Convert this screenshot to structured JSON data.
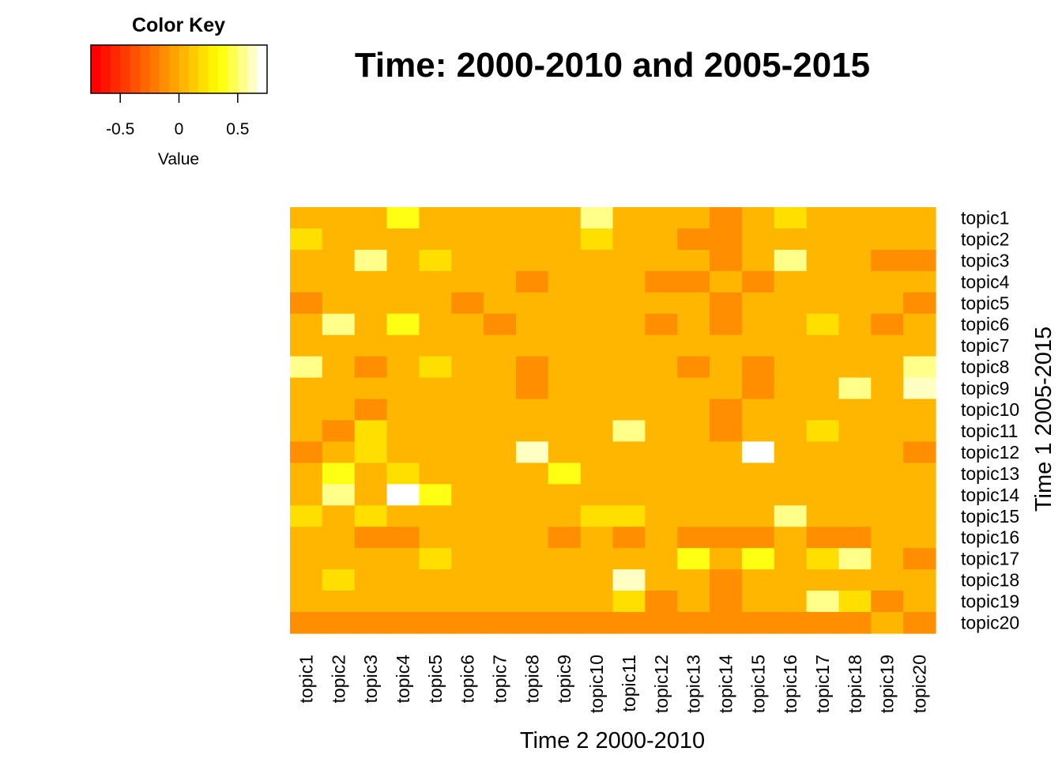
{
  "chart_data": {
    "type": "heatmap",
    "title": "Time: 2000-2010 and 2005-2015",
    "xlabel": "Time 2 2000-2010",
    "ylabel": "Time 1 2005-2015",
    "x_categories": [
      "topic1",
      "topic2",
      "topic3",
      "topic4",
      "topic5",
      "topic6",
      "topic7",
      "topic8",
      "topic9",
      "topic10",
      "topic11",
      "topic12",
      "topic13",
      "topic14",
      "topic15",
      "topic16",
      "topic17",
      "topic18",
      "topic19",
      "topic20"
    ],
    "y_categories": [
      "topic1",
      "topic2",
      "topic3",
      "topic4",
      "topic5",
      "topic6",
      "topic7",
      "topic8",
      "topic9",
      "topic10",
      "topic11",
      "topic12",
      "topic13",
      "topic14",
      "topic15",
      "topic16",
      "topic17",
      "topic18",
      "topic19",
      "topic20"
    ],
    "values": [
      [
        0,
        0,
        0,
        0.4,
        0,
        0,
        0,
        0,
        0,
        0.5,
        0,
        0,
        0,
        -0.15,
        0,
        0.2,
        0,
        0,
        0,
        0
      ],
      [
        0.2,
        0,
        0,
        0,
        0,
        0,
        0,
        0,
        0,
        0.2,
        0,
        0,
        -0.15,
        -0.15,
        0,
        0,
        0,
        0,
        0,
        0
      ],
      [
        0,
        0,
        0.5,
        0,
        0.2,
        0,
        0,
        0,
        0,
        0,
        0,
        0,
        0,
        -0.15,
        0,
        0.5,
        0,
        0,
        -0.15,
        -0.15
      ],
      [
        0,
        0,
        0,
        0,
        0,
        0,
        0,
        -0.15,
        0,
        0,
        0,
        -0.15,
        -0.15,
        0,
        -0.15,
        0,
        0,
        0,
        0,
        0
      ],
      [
        -0.15,
        0,
        0,
        0,
        0,
        -0.15,
        0,
        0,
        0,
        0,
        0,
        0,
        0,
        -0.15,
        0,
        0,
        0,
        0,
        0,
        -0.15
      ],
      [
        0,
        0.5,
        0,
        0.4,
        0,
        0,
        -0.15,
        0,
        0,
        0,
        0,
        -0.15,
        0,
        -0.15,
        0,
        0,
        0.2,
        0,
        -0.15,
        0
      ],
      [
        0,
        0,
        0,
        0,
        0,
        0,
        0,
        0,
        0,
        0,
        0,
        0,
        0,
        0,
        0,
        0,
        0,
        0,
        0,
        0
      ],
      [
        0.5,
        0,
        -0.15,
        0,
        0.2,
        0,
        0,
        -0.15,
        0,
        0,
        0,
        0,
        -0.15,
        0,
        -0.15,
        0,
        0,
        0,
        0,
        0.5
      ],
      [
        0,
        0,
        0,
        0,
        0,
        0,
        0,
        -0.15,
        0,
        0,
        0,
        0,
        0,
        0,
        -0.15,
        0,
        0,
        0.5,
        0,
        0.65
      ],
      [
        0,
        0,
        -0.15,
        0,
        0,
        0,
        0,
        0,
        0,
        0,
        0,
        0,
        0,
        -0.15,
        0,
        0,
        0,
        0,
        0,
        0
      ],
      [
        0,
        -0.15,
        0.2,
        0,
        0,
        0,
        0,
        0,
        0,
        0,
        0.5,
        0,
        0,
        -0.15,
        0,
        0,
        0.2,
        0,
        0,
        0
      ],
      [
        -0.15,
        0,
        0.2,
        0,
        0,
        0,
        0,
        0.65,
        0,
        0,
        0,
        0,
        0,
        0,
        0.75,
        0,
        0,
        0,
        0,
        -0.15
      ],
      [
        0,
        0.4,
        0,
        0.2,
        0,
        0,
        0,
        0,
        0.4,
        0,
        0,
        0,
        0,
        0,
        0,
        0,
        0,
        0,
        0,
        0
      ],
      [
        0,
        0.5,
        0,
        0.7,
        0.4,
        0,
        0,
        0,
        0,
        0,
        0,
        0,
        0,
        0,
        0,
        0,
        0,
        0,
        0,
        0
      ],
      [
        0.2,
        0,
        0.2,
        0,
        0,
        0,
        0,
        0,
        0,
        0.2,
        0.2,
        0,
        0,
        0,
        0,
        0.5,
        0,
        0,
        0,
        0
      ],
      [
        0,
        0,
        -0.15,
        -0.15,
        0,
        0,
        0,
        0,
        -0.15,
        0,
        -0.15,
        0,
        -0.15,
        -0.15,
        -0.15,
        0,
        -0.15,
        -0.15,
        0,
        0
      ],
      [
        0,
        0,
        0,
        0,
        0.2,
        0,
        0,
        0,
        0,
        0,
        0,
        0,
        0.4,
        0,
        0.4,
        0,
        0.2,
        0.5,
        0,
        -0.15
      ],
      [
        0,
        0.2,
        0,
        0,
        0,
        0,
        0,
        0,
        0,
        0,
        0.65,
        0,
        0,
        -0.15,
        0,
        0,
        0,
        0,
        0,
        0
      ],
      [
        0,
        0,
        0,
        0,
        0,
        0,
        0,
        0,
        0,
        0,
        0.2,
        -0.15,
        0,
        -0.15,
        0,
        0,
        0.5,
        0.2,
        -0.15,
        0
      ],
      [
        -0.15,
        -0.15,
        -0.15,
        -0.15,
        -0.15,
        -0.15,
        -0.15,
        -0.15,
        -0.15,
        -0.15,
        -0.15,
        -0.15,
        -0.15,
        -0.15,
        -0.15,
        -0.15,
        -0.15,
        -0.15,
        0,
        -0.15
      ]
    ],
    "color_key": {
      "title": "Color Key",
      "label": "Value",
      "range": [
        -0.75,
        0.75
      ],
      "ticks": [
        -0.5,
        0,
        0.5
      ],
      "tick_labels": [
        "-0.5",
        "0",
        "0.5"
      ],
      "colors": [
        "#FF0000",
        "#FF1400",
        "#FF2800",
        "#FF3C00",
        "#FF5100",
        "#FF6500",
        "#FF7900",
        "#FF8E00",
        "#FFA200",
        "#FFB600",
        "#FFCA00",
        "#FFDF00",
        "#FFF300",
        "#FFFF14",
        "#FFFF4F",
        "#FFFF8A",
        "#FFFFC4",
        "#FFFFFF"
      ]
    }
  }
}
